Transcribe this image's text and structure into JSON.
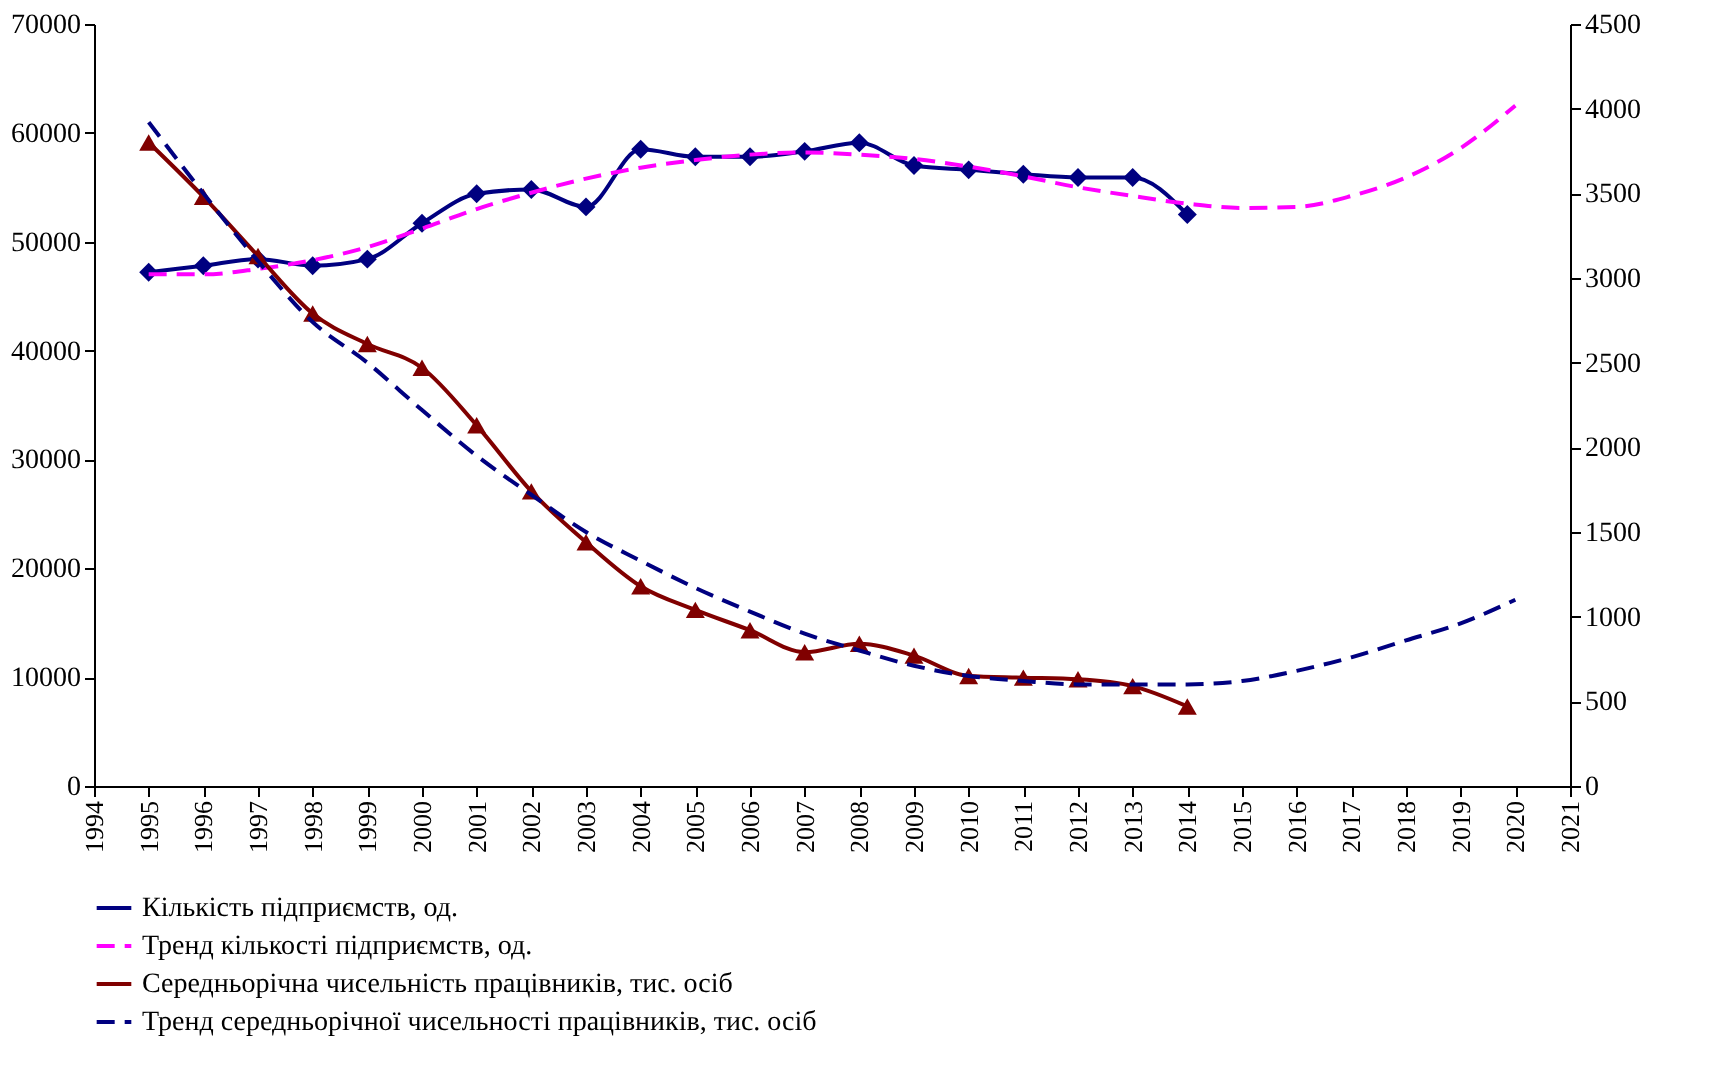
{
  "chart_data": {
    "type": "line",
    "xlim": [
      1994,
      2021
    ],
    "xticks": [
      1994,
      1995,
      1996,
      1997,
      1998,
      1999,
      2000,
      2001,
      2002,
      2003,
      2004,
      2005,
      2006,
      2007,
      2008,
      2009,
      2010,
      2011,
      2012,
      2013,
      2014,
      2015,
      2016,
      2017,
      2018,
      2019,
      2020,
      2021
    ],
    "ylim": [
      0,
      70000
    ],
    "yticks": [
      0,
      10000,
      20000,
      30000,
      40000,
      50000,
      60000,
      70000
    ],
    "y2lim": [
      0,
      4500
    ],
    "y2ticks": [
      0,
      500,
      1000,
      1500,
      2000,
      2500,
      3000,
      3500,
      4000,
      4500
    ],
    "grid": false,
    "legend": "bottom",
    "series": [
      {
        "name": "Кількість підприємств, од.",
        "color": "#000080",
        "marker": "diamond",
        "line_style": "solid",
        "x": [
          1995,
          1996,
          1997,
          1998,
          1999,
          2000,
          2001,
          2002,
          2003,
          2004,
          2005,
          2006,
          2007,
          2008,
          2009,
          2010,
          2011,
          2012,
          2013,
          2014
        ],
        "values": [
          47200,
          47800,
          48400,
          47800,
          48400,
          51700,
          54400,
          54800,
          53200,
          58500,
          57800,
          57800,
          58300,
          59100,
          57000,
          56600,
          56200,
          55900,
          55900,
          52500
        ]
      },
      {
        "name": "Тренд кількості підприємств, од.",
        "color": "#ff00ff",
        "marker": "none",
        "line_style": "dashed",
        "x": [
          1995,
          1996,
          1997,
          1998,
          1999,
          2000,
          2001,
          2002,
          2003,
          2004,
          2005,
          2006,
          2007,
          2008,
          2009,
          2010,
          2011,
          2012,
          2013,
          2014,
          2015,
          2016,
          2017,
          2018,
          2019,
          2020
        ],
        "values": [
          47000,
          47000,
          47500,
          48300,
          49500,
          51200,
          53000,
          54500,
          55800,
          56800,
          57500,
          58000,
          58200,
          58000,
          57600,
          56900,
          56000,
          55000,
          54200,
          53500,
          53100,
          53200,
          54200,
          55900,
          58600,
          62500
        ]
      },
      {
        "name": "Середньорічна чисельність працівників, тис. осіб",
        "color": "#800000",
        "marker": "triangle",
        "line_style": "solid",
        "axis": "y2",
        "x": [
          1995,
          1996,
          1997,
          1998,
          1999,
          2000,
          2001,
          2002,
          2003,
          2004,
          2005,
          2006,
          2007,
          2008,
          2009,
          2010,
          2011,
          2012,
          2013,
          2014
        ],
        "values": [
          3800,
          3480,
          3130,
          2790,
          2610,
          2470,
          2130,
          1740,
          1440,
          1180,
          1040,
          920,
          790,
          840,
          770,
          650,
          640,
          630,
          590,
          470
        ]
      },
      {
        "name": "Тренд середньорічної чисельності працівників, тис. осіб",
        "color": "#000080",
        "marker": "none",
        "line_style": "dashed",
        "axis": "y2",
        "x": [
          1995,
          1996,
          1997,
          1998,
          1999,
          2000,
          2001,
          2002,
          2003,
          2004,
          2005,
          2006,
          2007,
          2008,
          2009,
          2010,
          2011,
          2012,
          2013,
          2014,
          2015,
          2016,
          2017,
          2018,
          2019,
          2020
        ],
        "values": [
          3920,
          3500,
          3100,
          2740,
          2500,
          2220,
          1950,
          1720,
          1500,
          1330,
          1170,
          1030,
          900,
          800,
          710,
          650,
          620,
          600,
          600,
          600,
          620,
          680,
          760,
          860,
          960,
          1100
        ]
      }
    ]
  }
}
